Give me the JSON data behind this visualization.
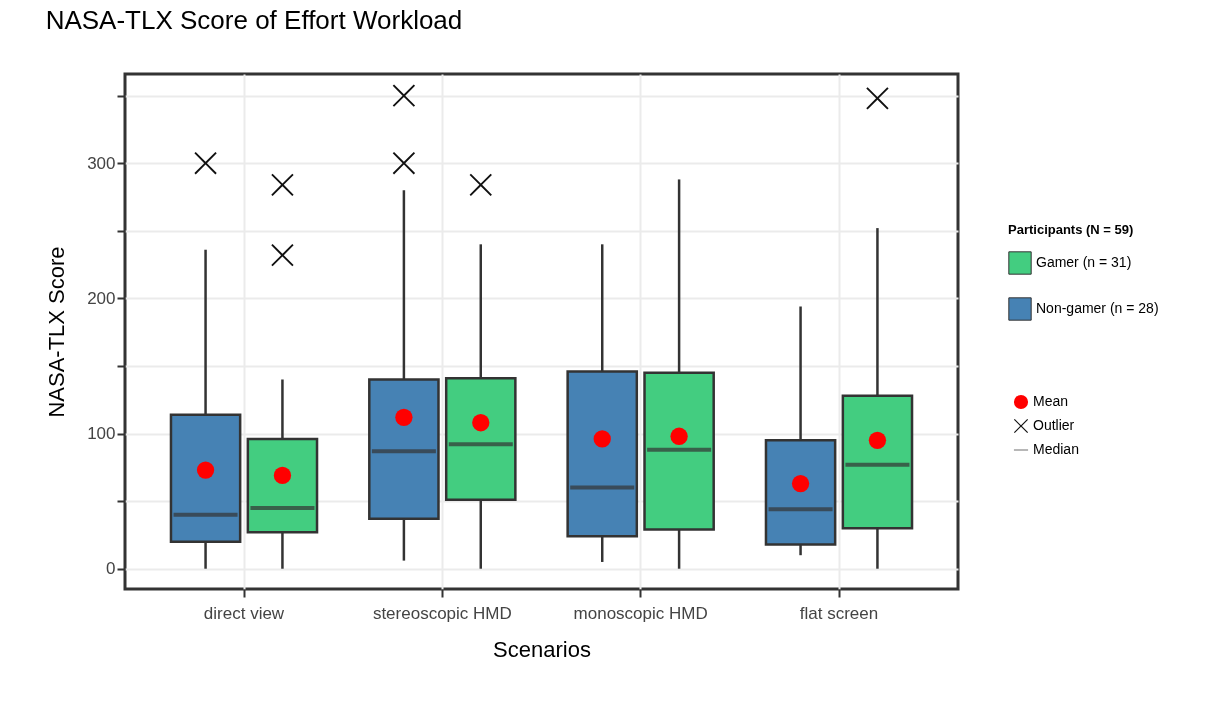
{
  "chart_data": {
    "type": "box",
    "title": "NASA-TLX Score of Effort Workload",
    "xlabel": "Scenarios",
    "ylabel": "NASA-TLX Score",
    "legend_title": "Participants (N = 59)",
    "categories": [
      "direct view",
      "stereoscopic HMD",
      "monoscopic HMD",
      "flat screen"
    ],
    "series": [
      {
        "name": "Non-gamer (n = 28)",
        "color": "#4682b4",
        "boxes": [
          {
            "low": 0,
            "q1": 20,
            "median": 40,
            "q3": 114,
            "high": 236,
            "mean": 73,
            "outliers": [
              300
            ]
          },
          {
            "low": 6,
            "q1": 37,
            "median": 87,
            "q3": 140,
            "high": 280,
            "mean": 112,
            "outliers": [
              300,
              350
            ]
          },
          {
            "low": 5,
            "q1": 24,
            "median": 60,
            "q3": 146,
            "high": 240,
            "mean": 96
          },
          {
            "low": 10,
            "q1": 18,
            "median": 44,
            "q3": 95,
            "high": 194,
            "mean": 63
          }
        ]
      },
      {
        "name": "Gamer (n = 31)",
        "color": "#43cd80",
        "boxes": [
          {
            "low": 0,
            "q1": 27,
            "median": 45,
            "q3": 96,
            "high": 140,
            "mean": 69,
            "outliers": [
              232,
              284
            ]
          },
          {
            "low": 0,
            "q1": 51,
            "median": 92,
            "q3": 141,
            "high": 240,
            "mean": 108,
            "outliers": [
              284
            ]
          },
          {
            "low": 0,
            "q1": 29,
            "median": 88,
            "q3": 145,
            "high": 288,
            "mean": 98
          },
          {
            "low": 0,
            "q1": 30,
            "median": 77,
            "q3": 128,
            "high": 252,
            "mean": 95,
            "outliers": [
              348
            ]
          }
        ]
      }
    ],
    "ylim": [
      -15,
      366
    ],
    "yticks": [
      0,
      {
        "value": 50,
        "label": null
      },
      100,
      {
        "value": 150,
        "label": null
      },
      200,
      {
        "value": 250,
        "label": null
      },
      300,
      {
        "value": 350,
        "label": null
      }
    ],
    "grid": true,
    "legend": "right",
    "annotations": [
      "Mean",
      "Outlier",
      "Median"
    ]
  }
}
